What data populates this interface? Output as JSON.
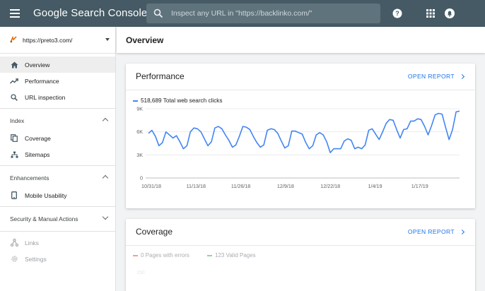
{
  "header": {
    "logo": "Google Search Console",
    "search_placeholder": "Inspect any URL in \"https://backlinko.com/\"",
    "icons": [
      "menu-icon",
      "help-icon",
      "apps-icon",
      "notifications-icon"
    ]
  },
  "sidebar": {
    "property": "https://preto3.com/",
    "top_items": [
      {
        "label": "Overview",
        "icon": "home-icon",
        "active": true
      },
      {
        "label": "Performance",
        "icon": "trending-up-icon"
      },
      {
        "label": "URL inspection",
        "icon": "search-icon"
      }
    ],
    "index": {
      "title": "Index",
      "items": [
        {
          "label": "Coverage",
          "icon": "coverage-icon"
        },
        {
          "label": "Sitemaps",
          "icon": "sitemaps-icon"
        }
      ]
    },
    "enhancements": {
      "title": "Enhancements",
      "items": [
        {
          "label": "Mobile Usability",
          "icon": "phone-icon"
        }
      ]
    },
    "security": {
      "title": "Security & Manual Actions"
    },
    "bottom_items": [
      {
        "label": "Links",
        "icon": "links-icon"
      },
      {
        "label": "Settings",
        "icon": "gear-icon"
      }
    ]
  },
  "main": {
    "title": "Overview",
    "performance": {
      "title": "Performance",
      "open_report": "OPEN REPORT",
      "legend_value": "518,689",
      "legend_label": "Total web search clicks"
    },
    "coverage": {
      "title": "Coverage",
      "open_report": "OPEN REPORT",
      "errors_label": "0 Pages with errors",
      "valid_label": "123 Valid Pages",
      "tick": "150"
    }
  },
  "colors": {
    "topbar": "#455a64",
    "accent": "#1a73e8",
    "series": "#4285f4",
    "errors": "#ea4335",
    "valid": "#34a853"
  },
  "chart_data": {
    "type": "line",
    "series": [
      {
        "name": "Total web search clicks",
        "values": [
          5800,
          6200,
          5400,
          4200,
          4600,
          6000,
          5600,
          5200,
          5500,
          4700,
          3800,
          4200,
          6000,
          6500,
          6400,
          6000,
          5100,
          4200,
          4700,
          6500,
          6700,
          6400,
          5600,
          4900,
          4000,
          4300,
          5400,
          6700,
          6600,
          6300,
          5400,
          4600,
          4000,
          4300,
          6200,
          6400,
          6300,
          5800,
          4800,
          3900,
          4200,
          6100,
          6100,
          5900,
          5700,
          4600,
          3800,
          4200,
          5600,
          5900,
          5600,
          4700,
          3300,
          3800,
          3800,
          3800,
          4800,
          5100,
          4900,
          3800,
          4000,
          3800,
          4300,
          6200,
          6400,
          5700,
          5000,
          6000,
          7100,
          7600,
          7500,
          6300,
          5200,
          6300,
          6400,
          7400,
          7400,
          7700,
          7600,
          6700,
          5600,
          6800,
          8200,
          8400,
          8300,
          6600,
          5000,
          6300,
          8600,
          8700
        ]
      }
    ],
    "x_ticks": [
      "10/31/18",
      "11/13/18",
      "11/26/18",
      "12/9/18",
      "12/22/18",
      "1/4/19",
      "1/17/19"
    ],
    "y_ticks": [
      "0",
      "3K",
      "6K",
      "9K"
    ],
    "ylim": [
      0,
      9000
    ],
    "grid": true,
    "legend_position": "top-left"
  }
}
